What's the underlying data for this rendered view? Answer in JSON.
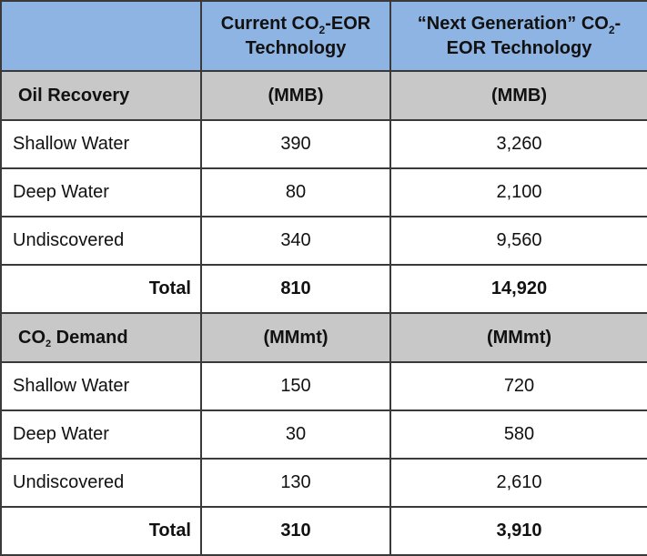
{
  "header": {
    "col2_line1_pre": "Current CO",
    "col2_line1_sub": "2",
    "col2_line1_post": "-EOR",
    "col2_line2": "Technology",
    "col3_line1_pre": "“Next Generation” CO",
    "col3_line1_sub": "2",
    "col3_line1_post": "-",
    "col3_line2": "EOR Technology"
  },
  "oil_section": {
    "label": "Oil Recovery",
    "unit_current": "(MMB)",
    "unit_next": "(MMB)",
    "rows": [
      {
        "label": "Shallow Water",
        "current": "390",
        "next": "3,260"
      },
      {
        "label": "Deep Water",
        "current": "80",
        "next": "2,100"
      },
      {
        "label": "Undiscovered",
        "current": "340",
        "next": "9,560"
      }
    ],
    "total": {
      "label": "Total",
      "current": "810",
      "next": "14,920"
    }
  },
  "co2_section": {
    "label_pre": "CO",
    "label_sub": "2",
    "label_post": " Demand",
    "unit_current": "(MMmt)",
    "unit_next": "(MMmt)",
    "rows": [
      {
        "label": "Shallow Water",
        "current": "150",
        "next": "720"
      },
      {
        "label": "Deep Water",
        "current": "30",
        "next": "580"
      },
      {
        "label": "Undiscovered",
        "current": "130",
        "next": "2,610"
      }
    ],
    "total": {
      "label": "Total",
      "current": "310",
      "next": "3,910"
    }
  },
  "colors": {
    "header_bg": "#8eb4e3",
    "section_bg": "#c8c8c8",
    "border": "#3a3a3a"
  }
}
